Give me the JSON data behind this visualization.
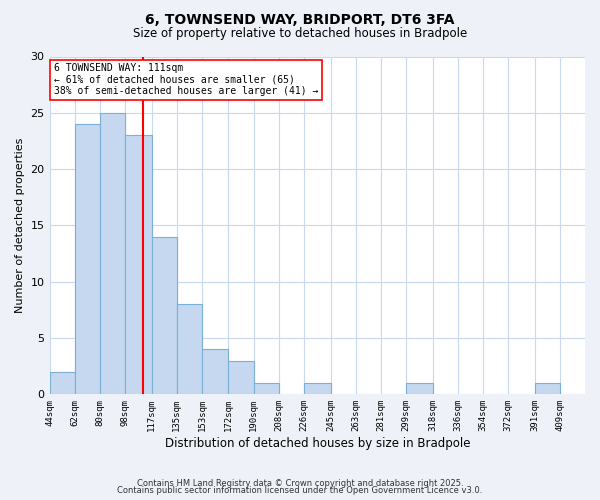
{
  "title": "6, TOWNSEND WAY, BRIDPORT, DT6 3FA",
  "subtitle": "Size of property relative to detached houses in Bradpole",
  "xlabel": "Distribution of detached houses by size in Bradpole",
  "ylabel": "Number of detached properties",
  "bar_left_edges": [
    44,
    62,
    80,
    98,
    117,
    135,
    153,
    172,
    190,
    208,
    226,
    245,
    263,
    281,
    299,
    318,
    336,
    354,
    372,
    391
  ],
  "bar_widths": [
    18,
    18,
    18,
    19,
    18,
    18,
    19,
    18,
    18,
    18,
    19,
    18,
    18,
    18,
    19,
    18,
    18,
    18,
    19,
    18
  ],
  "bar_heights": [
    2,
    24,
    25,
    23,
    14,
    8,
    4,
    3,
    1,
    0,
    1,
    0,
    0,
    0,
    1,
    0,
    0,
    0,
    0,
    1
  ],
  "tick_labels": [
    "44sqm",
    "62sqm",
    "80sqm",
    "98sqm",
    "117sqm",
    "135sqm",
    "153sqm",
    "172sqm",
    "190sqm",
    "208sqm",
    "226sqm",
    "245sqm",
    "263sqm",
    "281sqm",
    "299sqm",
    "318sqm",
    "336sqm",
    "354sqm",
    "372sqm",
    "391sqm",
    "409sqm"
  ],
  "tick_positions": [
    44,
    62,
    80,
    98,
    117,
    135,
    153,
    172,
    190,
    208,
    226,
    245,
    263,
    281,
    299,
    318,
    336,
    354,
    372,
    391,
    409
  ],
  "bar_color": "#c5d8f0",
  "bar_edge_color": "#7ab0d4",
  "vline_x": 111,
  "vline_color": "red",
  "ylim": [
    0,
    30
  ],
  "xlim": [
    44,
    427
  ],
  "annotation_title": "6 TOWNSEND WAY: 111sqm",
  "annotation_line1": "← 61% of detached houses are smaller (65)",
  "annotation_line2": "38% of semi-detached houses are larger (41) →",
  "annotation_box_color": "white",
  "annotation_box_edge_color": "red",
  "footer_line1": "Contains HM Land Registry data © Crown copyright and database right 2025.",
  "footer_line2": "Contains public sector information licensed under the Open Government Licence v3.0.",
  "background_color": "#eef2f8",
  "plot_background_color": "white",
  "grid_color": "#c8d8ee",
  "title_fontsize": 10,
  "subtitle_fontsize": 8.5,
  "ytick_labels": [
    0,
    5,
    10,
    15,
    20,
    25,
    30
  ]
}
